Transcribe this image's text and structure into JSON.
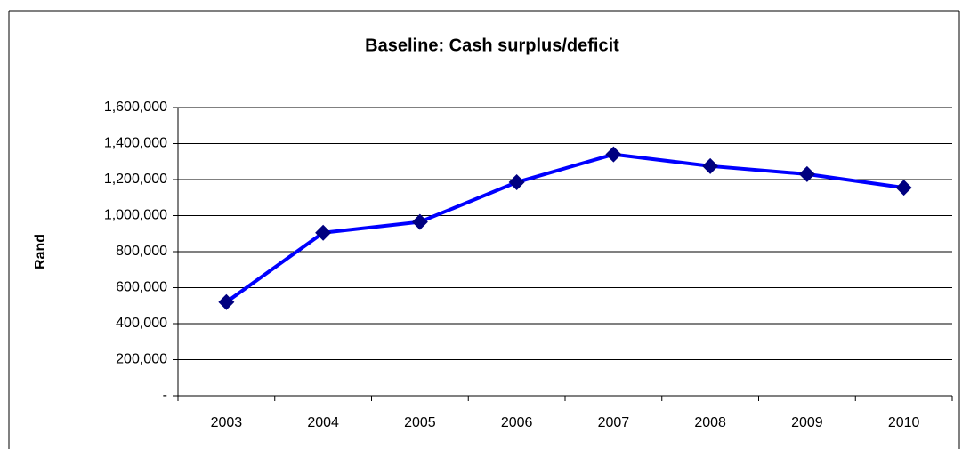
{
  "chart_data": {
    "type": "line",
    "title": "Baseline: Cash surplus/deficit",
    "ylabel": "Rand",
    "categories": [
      "2003",
      "2004",
      "2005",
      "2006",
      "2007",
      "2008",
      "2009",
      "2010"
    ],
    "values": [
      520000,
      905000,
      965000,
      1185000,
      1340000,
      1275000,
      1230000,
      1155000
    ],
    "color": "#0000ff",
    "marker_color": "#000080",
    "ylim": [
      0,
      1600000
    ],
    "yticks": [
      {
        "value": 0,
        "label": "-"
      },
      {
        "value": 200000,
        "label": "200,000"
      },
      {
        "value": 400000,
        "label": "400,000"
      },
      {
        "value": 600000,
        "label": "600,000"
      },
      {
        "value": 800000,
        "label": "800,000"
      },
      {
        "value": 1000000,
        "label": "1,000,000"
      },
      {
        "value": 1200000,
        "label": "1,200,000"
      },
      {
        "value": 1400000,
        "label": "1,400,000"
      },
      {
        "value": 1600000,
        "label": "1,600,000"
      }
    ],
    "grid": true
  }
}
